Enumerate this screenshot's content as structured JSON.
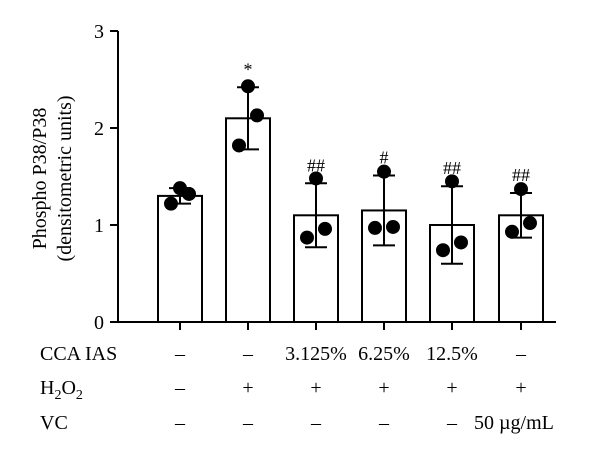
{
  "chart_data": {
    "type": "bar",
    "ylabel": "Phospho P38/P38",
    "ylabel_units": "(densitometric units)",
    "ylim": [
      0,
      3
    ],
    "yticks": [
      "0",
      "1",
      "2",
      "3"
    ],
    "grid": false,
    "bars": [
      {
        "value": 1.3,
        "err": 0.08,
        "points": [
          1.38,
          1.32,
          1.22
        ],
        "annotation": ""
      },
      {
        "value": 2.1,
        "err": 0.32,
        "points": [
          2.43,
          2.13,
          1.82
        ],
        "annotation": "*"
      },
      {
        "value": 1.1,
        "err": 0.33,
        "points": [
          1.48,
          0.96,
          0.87
        ],
        "annotation": "##"
      },
      {
        "value": 1.15,
        "err": 0.36,
        "points": [
          1.55,
          0.98,
          0.97
        ],
        "annotation": "#"
      },
      {
        "value": 1.0,
        "err": 0.4,
        "points": [
          1.45,
          0.82,
          0.74
        ],
        "annotation": "##"
      },
      {
        "value": 1.1,
        "err": 0.23,
        "points": [
          1.37,
          1.02,
          0.93
        ],
        "annotation": "##"
      }
    ],
    "conditions": [
      {
        "label": "CCA IAS",
        "values": [
          "–",
          "–",
          "3.125%",
          "6.25%",
          "12.5%",
          "–"
        ]
      },
      {
        "label": "H2O2",
        "label_parts": [
          "H",
          "2",
          "O",
          "2"
        ],
        "values": [
          "–",
          "+",
          "+",
          "+",
          "+",
          "+"
        ]
      },
      {
        "label": "VC",
        "values": [
          "–",
          "–",
          "–",
          "–",
          "–",
          "50 µg/mL"
        ]
      }
    ]
  }
}
